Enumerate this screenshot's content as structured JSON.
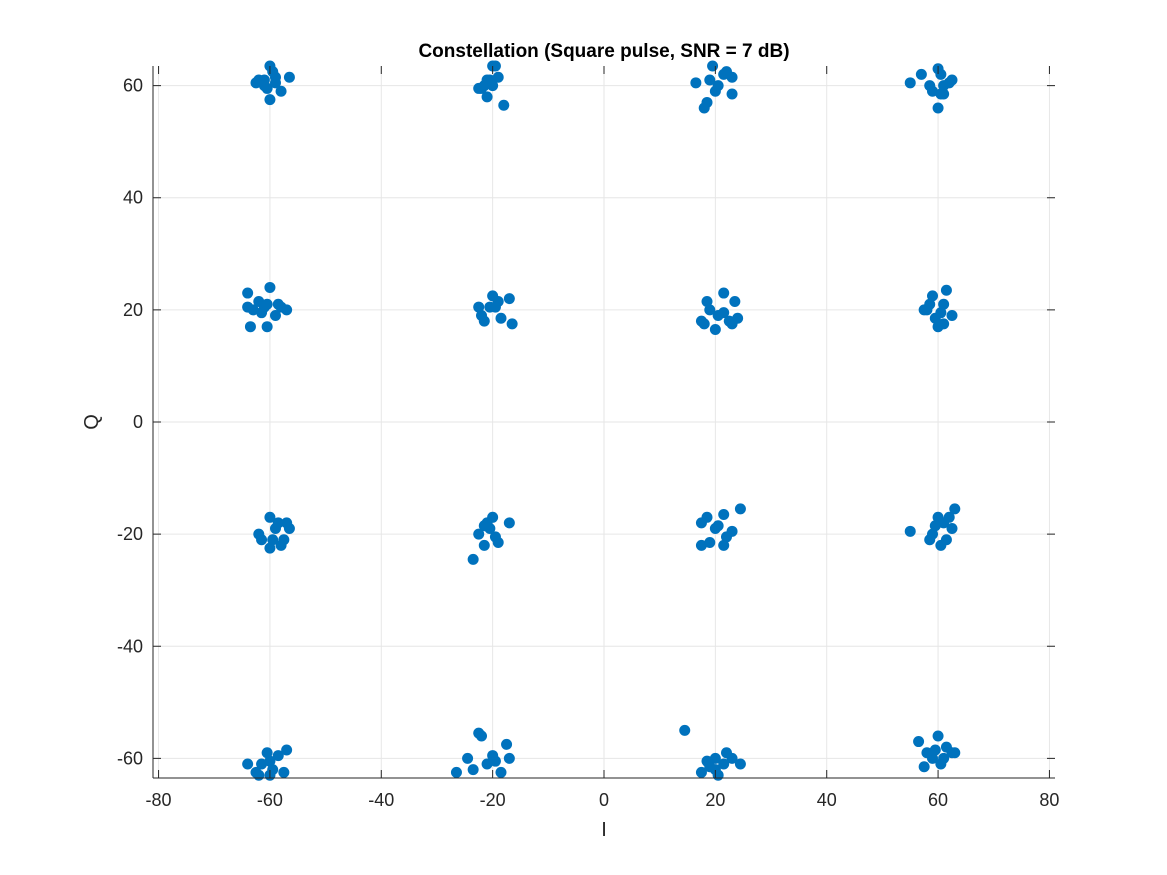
{
  "chart_data": {
    "type": "scatter",
    "title": "Constellation (Square pulse, SNR = 7 dB)",
    "xlabel": "I",
    "ylabel": "Q",
    "xlim": [
      -81,
      81
    ],
    "ylim": [
      -63.5,
      63.5
    ],
    "xticks": [
      -80,
      -60,
      -40,
      -20,
      0,
      20,
      40,
      60,
      80
    ],
    "yticks": [
      -60,
      -40,
      -20,
      0,
      20,
      40,
      60
    ],
    "grid": true,
    "marker_color": "#0072BD",
    "series": [
      {
        "points": [
          [
            -62,
            61
          ],
          [
            -60,
            63.5
          ],
          [
            -60,
            57.5
          ],
          [
            -58,
            59
          ],
          [
            -61,
            60
          ],
          [
            -59,
            61.5
          ],
          [
            -56.5,
            61.5
          ],
          [
            -59,
            60.5
          ],
          [
            -62.5,
            60.5
          ],
          [
            -60.5,
            59.5
          ],
          [
            -59.5,
            62.5
          ],
          [
            -61,
            61
          ],
          [
            -22.5,
            59.5
          ],
          [
            -20,
            63.5
          ],
          [
            -21,
            58
          ],
          [
            -18,
            56.5
          ],
          [
            -20.5,
            61
          ],
          [
            -19,
            61.5
          ],
          [
            -21.5,
            60
          ],
          [
            -19.5,
            63.5
          ],
          [
            -22,
            59.5
          ],
          [
            -20,
            60
          ],
          [
            -21,
            61
          ],
          [
            16.5,
            60.5
          ],
          [
            19.5,
            63.5
          ],
          [
            18,
            56
          ],
          [
            21.5,
            62
          ],
          [
            23,
            61.5
          ],
          [
            20,
            59
          ],
          [
            19,
            61
          ],
          [
            18.5,
            57
          ],
          [
            23,
            58.5
          ],
          [
            20.5,
            60
          ],
          [
            22,
            62.5
          ],
          [
            57,
            62
          ],
          [
            60,
            63
          ],
          [
            61,
            58.5
          ],
          [
            60,
            56
          ],
          [
            62.5,
            61
          ],
          [
            58.5,
            60
          ],
          [
            60.5,
            62
          ],
          [
            59,
            59
          ],
          [
            61,
            60
          ],
          [
            55,
            60.5
          ],
          [
            62,
            60.5
          ],
          [
            60.5,
            58.5
          ],
          [
            -64,
            23
          ],
          [
            -63.5,
            17
          ],
          [
            -60,
            24
          ],
          [
            -62,
            21.5
          ],
          [
            -60.5,
            17
          ],
          [
            -58,
            20.5
          ],
          [
            -57,
            20
          ],
          [
            -61,
            20.5
          ],
          [
            -59,
            19
          ],
          [
            -63,
            20
          ],
          [
            -58.5,
            21
          ],
          [
            -60.5,
            21
          ],
          [
            -61.5,
            19.5
          ],
          [
            -22.5,
            20.5
          ],
          [
            -20,
            22.5
          ],
          [
            -21.5,
            18
          ],
          [
            -18.5,
            18.5
          ],
          [
            -19,
            21.5
          ],
          [
            -17,
            22
          ],
          [
            -16.5,
            17.5
          ],
          [
            -19.5,
            20.5
          ],
          [
            -20.5,
            20.5
          ],
          [
            -22,
            19
          ],
          [
            18.5,
            21.5
          ],
          [
            21.5,
            23
          ],
          [
            18,
            17.5
          ],
          [
            20,
            16.5
          ],
          [
            22.5,
            18
          ],
          [
            23.5,
            21.5
          ],
          [
            24,
            18.5
          ],
          [
            19,
            20
          ],
          [
            20.5,
            19
          ],
          [
            23,
            17.5
          ],
          [
            17.5,
            18
          ],
          [
            21.5,
            19.5
          ],
          [
            58,
            20
          ],
          [
            59,
            22.5
          ],
          [
            61.5,
            23.5
          ],
          [
            60,
            17
          ],
          [
            62.5,
            19
          ],
          [
            58.5,
            21
          ],
          [
            60.5,
            19.5
          ],
          [
            61,
            17.5
          ],
          [
            59.5,
            18.5
          ],
          [
            57.5,
            20
          ],
          [
            61,
            21
          ],
          [
            -64,
            20.5
          ],
          [
            -60,
            -17
          ],
          [
            -61.5,
            -21
          ],
          [
            -59,
            -19
          ],
          [
            -56.5,
            -19
          ],
          [
            -57.5,
            -21
          ],
          [
            -60,
            -22.5
          ],
          [
            -58.5,
            -18
          ],
          [
            -57,
            -18
          ],
          [
            -62,
            -20
          ],
          [
            -58,
            -22
          ],
          [
            -59.5,
            -21
          ],
          [
            -21.5,
            -18.5
          ],
          [
            -20,
            -17
          ],
          [
            -23.5,
            -24.5
          ],
          [
            -21.5,
            -22
          ],
          [
            -19.5,
            -20.5
          ],
          [
            -17,
            -18
          ],
          [
            -19,
            -21.5
          ],
          [
            -20.5,
            -19
          ],
          [
            -22.5,
            -20
          ],
          [
            -21,
            -18
          ],
          [
            17.5,
            -22
          ],
          [
            18.5,
            -17
          ],
          [
            21.5,
            -16.5
          ],
          [
            24.5,
            -15.5
          ],
          [
            20,
            -19
          ],
          [
            23,
            -19.5
          ],
          [
            21.5,
            -22
          ],
          [
            19,
            -21.5
          ],
          [
            17.5,
            -18
          ],
          [
            20.5,
            -18.5
          ],
          [
            22,
            -20.5
          ],
          [
            55,
            -19.5
          ],
          [
            60,
            -17
          ],
          [
            63,
            -15.5
          ],
          [
            61.5,
            -21
          ],
          [
            59,
            -20
          ],
          [
            62.5,
            -19
          ],
          [
            60.5,
            -22
          ],
          [
            61,
            -18
          ],
          [
            58.5,
            -21
          ],
          [
            59.5,
            -18.5
          ],
          [
            62,
            -17
          ],
          [
            -64,
            -61
          ],
          [
            -60.5,
            -59
          ],
          [
            -57,
            -58.5
          ],
          [
            -62,
            -63
          ],
          [
            -59.5,
            -62
          ],
          [
            -57.5,
            -62.5
          ],
          [
            -61.5,
            -61
          ],
          [
            -60,
            -60.5
          ],
          [
            -58.5,
            -59.5
          ],
          [
            -62.5,
            -62.5
          ],
          [
            -60,
            -63
          ],
          [
            -26.5,
            -62.5
          ],
          [
            -23.5,
            -62
          ],
          [
            -22.5,
            -55.5
          ],
          [
            -24.5,
            -60
          ],
          [
            -20,
            -59.5
          ],
          [
            -17.5,
            -57.5
          ],
          [
            -18.5,
            -62.5
          ],
          [
            -21,
            -61
          ],
          [
            -19.5,
            -60.5
          ],
          [
            -22,
            -56
          ],
          [
            -17,
            -60
          ],
          [
            14.5,
            -55
          ],
          [
            17.5,
            -62.5
          ],
          [
            20,
            -60
          ],
          [
            22,
            -59
          ],
          [
            24.5,
            -61
          ],
          [
            20.5,
            -63
          ],
          [
            19,
            -61.5
          ],
          [
            21.5,
            -61
          ],
          [
            23,
            -60
          ],
          [
            18.5,
            -60.5
          ],
          [
            20,
            -62
          ],
          [
            56.5,
            -57
          ],
          [
            60,
            -56
          ],
          [
            59,
            -60
          ],
          [
            62.5,
            -59
          ],
          [
            57.5,
            -61.5
          ],
          [
            60.5,
            -61
          ],
          [
            61.5,
            -58
          ],
          [
            59.5,
            -58.5
          ],
          [
            58,
            -59
          ],
          [
            61,
            -60
          ],
          [
            63,
            -59
          ]
        ]
      }
    ]
  }
}
